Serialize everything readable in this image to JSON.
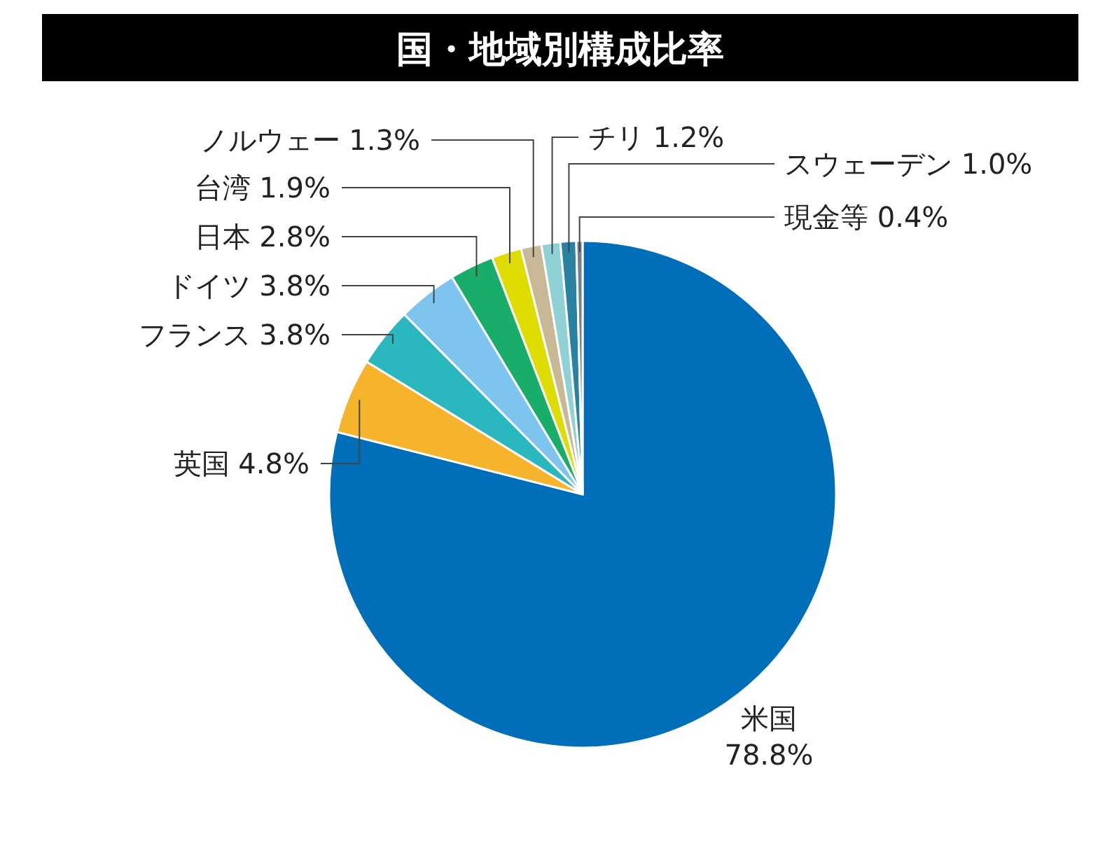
{
  "chart_data": {
    "type": "pie",
    "title": "国・地域別構成比率",
    "categories": [
      "米国",
      "英国",
      "フランス",
      "ドイツ",
      "日本",
      "台湾",
      "ノルウェー",
      "チリ",
      "スウェーデン",
      "現金等"
    ],
    "values": [
      78.8,
      4.8,
      3.8,
      3.8,
      2.8,
      1.9,
      1.3,
      1.2,
      1.0,
      0.4
    ],
    "value_labels": [
      "78.8%",
      "4.8%",
      "3.8%",
      "3.8%",
      "2.8%",
      "1.9%",
      "1.3%",
      "1.2%",
      "1.0%",
      "0.4%"
    ],
    "colors": [
      "#006eb8",
      "#f6b42d",
      "#2ab8be",
      "#7dc5ee",
      "#18ae6a",
      "#dfdc00",
      "#c9b896",
      "#8fd2d6",
      "#2a82a2",
      "#737d93"
    ]
  }
}
